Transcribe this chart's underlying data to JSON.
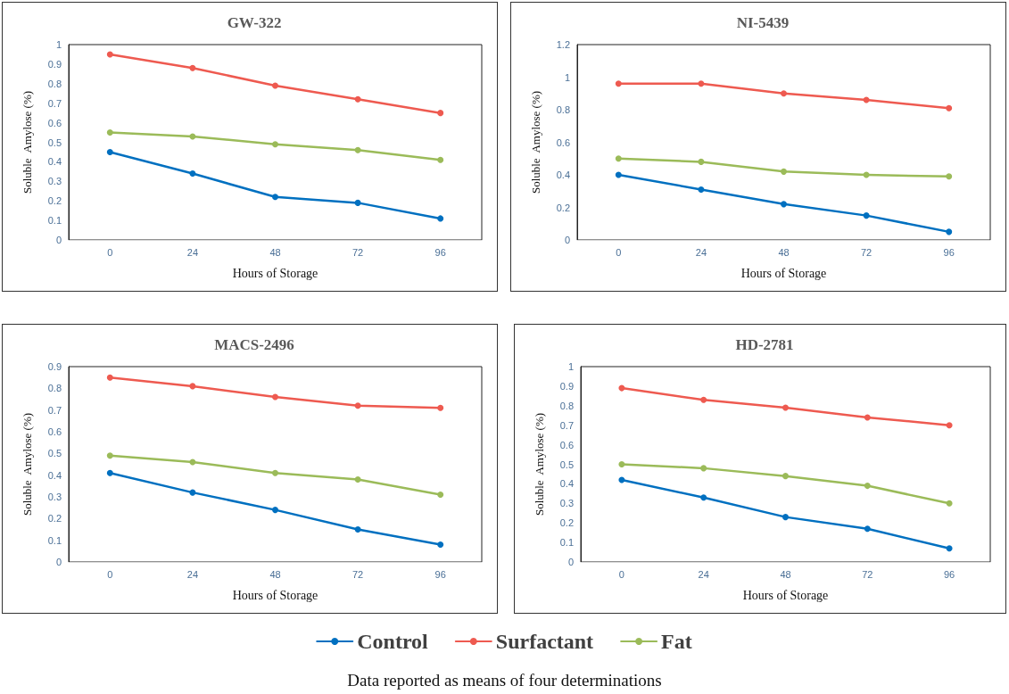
{
  "chart_data": [
    {
      "type": "line",
      "title": "GW-322",
      "xlabel": "Hours of Storage",
      "ylabel": "Soluble  Amylose (%)",
      "categories": [
        "0",
        "24",
        "48",
        "72",
        "96"
      ],
      "ylim": [
        0,
        1
      ],
      "yticks": [
        0,
        0.1,
        0.2,
        0.3,
        0.4,
        0.5,
        0.6,
        0.7,
        0.8,
        0.9,
        1
      ],
      "grid": false,
      "marker": "circle",
      "line_style": "solid",
      "series": [
        {
          "color": "#0070c0",
          "values": [
            0.45,
            0.34,
            0.22,
            0.19,
            0.11
          ]
        },
        {
          "color": "#ee5a50",
          "values": [
            0.95,
            0.88,
            0.79,
            0.72,
            0.65
          ]
        },
        {
          "color": "#9bbb59",
          "values": [
            0.55,
            0.53,
            0.49,
            0.46,
            0.41
          ]
        }
      ]
    },
    {
      "type": "line",
      "title": "NI-5439",
      "xlabel": "Hours of Storage",
      "ylabel": "Soluble  Amylose (%)",
      "categories": [
        "0",
        "24",
        "48",
        "72",
        "96"
      ],
      "ylim": [
        0,
        1.2
      ],
      "yticks": [
        0,
        0.2,
        0.4,
        0.6,
        0.8,
        1,
        1.2
      ],
      "grid": false,
      "marker": "circle",
      "line_style": "solid",
      "series": [
        {
          "color": "#0070c0",
          "values": [
            0.4,
            0.31,
            0.22,
            0.15,
            0.05
          ]
        },
        {
          "color": "#ee5a50",
          "values": [
            0.96,
            0.96,
            0.9,
            0.86,
            0.81
          ]
        },
        {
          "color": "#9bbb59",
          "values": [
            0.5,
            0.48,
            0.42,
            0.4,
            0.39
          ]
        }
      ]
    },
    {
      "type": "line",
      "title": "MACS-2496",
      "xlabel": "Hours of Storage",
      "ylabel": "Soluble  Amylose (%)",
      "categories": [
        "0",
        "24",
        "48",
        "72",
        "96"
      ],
      "ylim": [
        0,
        0.9
      ],
      "yticks": [
        0,
        0.1,
        0.2,
        0.3,
        0.4,
        0.5,
        0.6,
        0.7,
        0.8,
        0.9
      ],
      "grid": false,
      "marker": "circle",
      "line_style": "solid",
      "series": [
        {
          "color": "#0070c0",
          "values": [
            0.41,
            0.32,
            0.24,
            0.15,
            0.08
          ]
        },
        {
          "color": "#ee5a50",
          "values": [
            0.85,
            0.81,
            0.76,
            0.72,
            0.71
          ]
        },
        {
          "color": "#9bbb59",
          "values": [
            0.49,
            0.46,
            0.41,
            0.38,
            0.31
          ]
        }
      ]
    },
    {
      "type": "line",
      "title": "HD-2781",
      "xlabel": "Hours of Storage",
      "ylabel": "Soluble  Amylose (%)",
      "categories": [
        "0",
        "24",
        "48",
        "72",
        "96"
      ],
      "ylim": [
        0,
        1
      ],
      "yticks": [
        0,
        0.1,
        0.2,
        0.3,
        0.4,
        0.5,
        0.6,
        0.7,
        0.8,
        0.9,
        1
      ],
      "grid": false,
      "marker": "circle",
      "line_style": "solid",
      "legend": "bottom",
      "annotations": [
        "Data reported as means of four determinations"
      ],
      "series": [
        {
          "name": "Control",
          "color": "#0070c0",
          "values": [
            0.42,
            0.33,
            0.23,
            0.17,
            0.07
          ]
        },
        {
          "name": "Surfactant",
          "color": "#ee5a50",
          "values": [
            0.89,
            0.83,
            0.79,
            0.74,
            0.7
          ]
        },
        {
          "name": "Fat",
          "color": "#9bbb59",
          "values": [
            0.5,
            0.48,
            0.44,
            0.39,
            0.3
          ]
        }
      ]
    }
  ]
}
